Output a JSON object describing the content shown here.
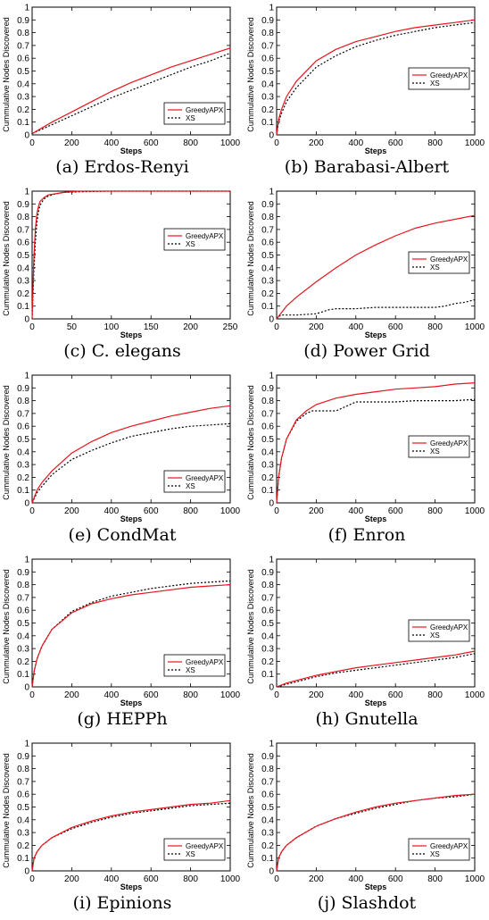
{
  "colors": {
    "greedy": "#e8141c",
    "xs": "#000000"
  },
  "legend_labels": [
    "GreedyAPX",
    "XS"
  ],
  "chart_data": [
    {
      "type": "line",
      "caption": "(a) Erdos-Renyi",
      "xlabel": "Steps",
      "ylabel": "Cummulative Nodes Discovered",
      "xlim": [
        0,
        1000
      ],
      "ylim": [
        0,
        1
      ],
      "xticks": [
        0,
        200,
        400,
        600,
        800,
        1000
      ],
      "legend_position": "bottom-right",
      "series": [
        {
          "name": "GreedyAPX",
          "style": "solid",
          "x": [
            0,
            100,
            200,
            300,
            400,
            500,
            600,
            700,
            800,
            900,
            1000
          ],
          "y": [
            0.01,
            0.1,
            0.18,
            0.26,
            0.34,
            0.41,
            0.47,
            0.53,
            0.58,
            0.63,
            0.68
          ]
        },
        {
          "name": "XS",
          "style": "dotted",
          "x": [
            0,
            100,
            200,
            300,
            400,
            500,
            600,
            700,
            800,
            900,
            1000
          ],
          "y": [
            0.01,
            0.08,
            0.15,
            0.22,
            0.29,
            0.35,
            0.41,
            0.47,
            0.53,
            0.58,
            0.64
          ]
        }
      ]
    },
    {
      "type": "line",
      "caption": "(b) Barabasi-Albert",
      "xlabel": "Steps",
      "ylabel": "Cummulative Nodes Discovered",
      "xlim": [
        0,
        1000
      ],
      "ylim": [
        0,
        1
      ],
      "xticks": [
        0,
        200,
        400,
        600,
        800,
        1000
      ],
      "legend_position": "middle-right",
      "series": [
        {
          "name": "GreedyAPX",
          "style": "solid",
          "x": [
            0,
            10,
            25,
            50,
            100,
            200,
            300,
            400,
            500,
            600,
            700,
            800,
            900,
            1000
          ],
          "y": [
            0,
            0.12,
            0.2,
            0.3,
            0.42,
            0.58,
            0.67,
            0.73,
            0.77,
            0.81,
            0.84,
            0.86,
            0.88,
            0.9
          ]
        },
        {
          "name": "XS",
          "style": "dotted",
          "x": [
            0,
            10,
            25,
            50,
            100,
            200,
            300,
            400,
            500,
            600,
            700,
            800,
            900,
            1000
          ],
          "y": [
            0,
            0.1,
            0.17,
            0.26,
            0.37,
            0.53,
            0.62,
            0.69,
            0.74,
            0.78,
            0.81,
            0.84,
            0.86,
            0.88
          ]
        }
      ]
    },
    {
      "type": "line",
      "caption": "(c) C. elegans",
      "xlabel": "Steps",
      "ylabel": "Cummulative Nodes Discovered",
      "xlim": [
        0,
        250
      ],
      "ylim": [
        0,
        1
      ],
      "xticks": [
        0,
        50,
        100,
        150,
        200,
        250
      ],
      "legend_position": "top-right",
      "series": [
        {
          "name": "GreedyAPX",
          "style": "solid",
          "x": [
            0,
            2,
            4,
            6,
            8,
            10,
            15,
            20,
            30,
            40,
            60,
            100,
            150,
            200,
            250
          ],
          "y": [
            0,
            0.45,
            0.7,
            0.82,
            0.88,
            0.92,
            0.95,
            0.97,
            0.98,
            0.99,
            1,
            1,
            1,
            1,
            1
          ]
        },
        {
          "name": "XS",
          "style": "dotted",
          "x": [
            0,
            2,
            4,
            6,
            8,
            10,
            15,
            20,
            30,
            40,
            60,
            100,
            150,
            200,
            250
          ],
          "y": [
            0,
            0.35,
            0.6,
            0.75,
            0.84,
            0.89,
            0.94,
            0.96,
            0.98,
            0.99,
            0.995,
            1,
            1,
            1,
            1
          ]
        }
      ]
    },
    {
      "type": "line",
      "caption": "(d) Power Grid",
      "xlabel": "Steps",
      "ylabel": "Cummulative Nodes Discovered",
      "xlim": [
        0,
        1000
      ],
      "ylim": [
        0,
        1
      ],
      "xticks": [
        0,
        200,
        400,
        600,
        800,
        1000
      ],
      "legend_position": "middle-right",
      "series": [
        {
          "name": "GreedyAPX",
          "style": "solid",
          "x": [
            0,
            50,
            100,
            200,
            300,
            400,
            500,
            600,
            700,
            800,
            900,
            1000
          ],
          "y": [
            0,
            0.1,
            0.17,
            0.29,
            0.4,
            0.5,
            0.58,
            0.65,
            0.71,
            0.75,
            0.78,
            0.81
          ]
        },
        {
          "name": "XS",
          "style": "dotted",
          "x": [
            0,
            20,
            100,
            200,
            260,
            300,
            400,
            500,
            600,
            700,
            800,
            850,
            900,
            950,
            1000
          ],
          "y": [
            0,
            0.03,
            0.03,
            0.04,
            0.07,
            0.08,
            0.08,
            0.09,
            0.09,
            0.09,
            0.09,
            0.1,
            0.12,
            0.13,
            0.15
          ]
        }
      ]
    },
    {
      "type": "line",
      "caption": "(e) CondMat",
      "xlabel": "Steps",
      "ylabel": "Cummulative Nodes Discovered",
      "xlim": [
        0,
        1000
      ],
      "ylim": [
        0,
        1
      ],
      "xticks": [
        0,
        200,
        400,
        600,
        800,
        1000
      ],
      "legend_position": "bottom-right",
      "series": [
        {
          "name": "GreedyAPX",
          "style": "solid",
          "x": [
            0,
            25,
            50,
            100,
            200,
            300,
            400,
            500,
            600,
            700,
            800,
            900,
            1000
          ],
          "y": [
            0,
            0.1,
            0.16,
            0.25,
            0.39,
            0.48,
            0.55,
            0.6,
            0.64,
            0.68,
            0.71,
            0.74,
            0.76
          ]
        },
        {
          "name": "XS",
          "style": "dotted",
          "x": [
            0,
            25,
            50,
            100,
            200,
            300,
            400,
            500,
            600,
            700,
            800,
            900,
            1000
          ],
          "y": [
            0,
            0.08,
            0.13,
            0.22,
            0.34,
            0.41,
            0.47,
            0.52,
            0.55,
            0.58,
            0.6,
            0.61,
            0.62
          ]
        }
      ]
    },
    {
      "type": "line",
      "caption": "(f) Enron",
      "xlabel": "Steps",
      "ylabel": "Cummulative Nodes Discovered",
      "xlim": [
        0,
        1000
      ],
      "ylim": [
        0,
        1
      ],
      "xticks": [
        0,
        200,
        400,
        600,
        800,
        1000
      ],
      "legend_position": "middle-right",
      "series": [
        {
          "name": "GreedyAPX",
          "style": "solid",
          "x": [
            0,
            10,
            25,
            50,
            100,
            150,
            200,
            300,
            400,
            500,
            600,
            700,
            800,
            900,
            1000
          ],
          "y": [
            0,
            0.2,
            0.35,
            0.5,
            0.65,
            0.72,
            0.77,
            0.82,
            0.85,
            0.87,
            0.89,
            0.9,
            0.91,
            0.93,
            0.94
          ]
        },
        {
          "name": "XS",
          "style": "dotted",
          "x": [
            0,
            10,
            25,
            50,
            100,
            150,
            180,
            200,
            250,
            300,
            400,
            500,
            600,
            700,
            800,
            900,
            1000
          ],
          "y": [
            0,
            0.2,
            0.35,
            0.5,
            0.64,
            0.7,
            0.72,
            0.72,
            0.72,
            0.72,
            0.79,
            0.79,
            0.79,
            0.8,
            0.8,
            0.8,
            0.81
          ]
        }
      ]
    },
    {
      "type": "line",
      "caption": "(g) HEPPh",
      "xlabel": "Steps",
      "ylabel": "Cummulative Nodes Discovered",
      "xlim": [
        0,
        1000
      ],
      "ylim": [
        0,
        1
      ],
      "xticks": [
        0,
        200,
        400,
        600,
        800,
        1000
      ],
      "legend_position": "bottom-right",
      "series": [
        {
          "name": "GreedyAPX",
          "style": "solid",
          "x": [
            0,
            10,
            25,
            50,
            100,
            200,
            300,
            400,
            500,
            600,
            700,
            800,
            900,
            1000
          ],
          "y": [
            0,
            0.12,
            0.22,
            0.32,
            0.45,
            0.58,
            0.65,
            0.69,
            0.72,
            0.74,
            0.76,
            0.78,
            0.79,
            0.8
          ]
        },
        {
          "name": "XS",
          "style": "dotted",
          "x": [
            0,
            10,
            25,
            50,
            100,
            200,
            300,
            400,
            500,
            600,
            700,
            800,
            900,
            1000
          ],
          "y": [
            0,
            0.12,
            0.22,
            0.32,
            0.45,
            0.59,
            0.66,
            0.71,
            0.74,
            0.77,
            0.79,
            0.81,
            0.82,
            0.83
          ]
        }
      ]
    },
    {
      "type": "line",
      "caption": "(h) Gnutella",
      "xlabel": "Steps",
      "ylabel": "Cummulative Nodes Discovered",
      "xlim": [
        0,
        1000
      ],
      "ylim": [
        0,
        1
      ],
      "xticks": [
        0,
        200,
        400,
        600,
        800,
        1000
      ],
      "legend_position": "middle-right",
      "series": [
        {
          "name": "GreedyAPX",
          "style": "solid",
          "x": [
            0,
            50,
            100,
            200,
            300,
            400,
            500,
            600,
            700,
            800,
            900,
            1000
          ],
          "y": [
            0,
            0.03,
            0.05,
            0.09,
            0.12,
            0.15,
            0.17,
            0.19,
            0.21,
            0.23,
            0.25,
            0.28
          ]
        },
        {
          "name": "XS",
          "style": "dotted",
          "x": [
            0,
            50,
            100,
            200,
            300,
            400,
            500,
            600,
            700,
            800,
            900,
            1000
          ],
          "y": [
            0,
            0.02,
            0.04,
            0.08,
            0.11,
            0.13,
            0.15,
            0.17,
            0.19,
            0.21,
            0.23,
            0.26
          ]
        }
      ]
    },
    {
      "type": "line",
      "caption": "(i) Epinions",
      "xlabel": "Steps",
      "ylabel": "Cummulative Nodes Discovered",
      "xlim": [
        0,
        1000
      ],
      "ylim": [
        0,
        1
      ],
      "xticks": [
        0,
        200,
        400,
        600,
        800,
        1000
      ],
      "legend_position": "bottom-right",
      "series": [
        {
          "name": "GreedyAPX",
          "style": "solid",
          "x": [
            0,
            10,
            25,
            50,
            100,
            200,
            300,
            400,
            500,
            600,
            700,
            800,
            900,
            1000
          ],
          "y": [
            0,
            0.1,
            0.15,
            0.2,
            0.26,
            0.34,
            0.39,
            0.43,
            0.46,
            0.48,
            0.5,
            0.52,
            0.53,
            0.55
          ]
        },
        {
          "name": "XS",
          "style": "dotted",
          "x": [
            0,
            10,
            25,
            50,
            100,
            200,
            300,
            400,
            500,
            600,
            700,
            800,
            900,
            1000
          ],
          "y": [
            0,
            0.1,
            0.15,
            0.2,
            0.26,
            0.33,
            0.38,
            0.42,
            0.45,
            0.47,
            0.49,
            0.51,
            0.52,
            0.53
          ]
        }
      ]
    },
    {
      "type": "line",
      "caption": "(j) Slashdot",
      "xlabel": "Steps",
      "ylabel": "Cummulative Nodes Discovered",
      "xlim": [
        0,
        1000
      ],
      "ylim": [
        0,
        1
      ],
      "xticks": [
        0,
        200,
        400,
        600,
        800,
        1000
      ],
      "legend_position": "bottom-right",
      "series": [
        {
          "name": "GreedyAPX",
          "style": "solid",
          "x": [
            0,
            10,
            25,
            50,
            100,
            200,
            300,
            400,
            500,
            600,
            700,
            800,
            900,
            1000
          ],
          "y": [
            0,
            0.1,
            0.15,
            0.2,
            0.26,
            0.35,
            0.41,
            0.46,
            0.5,
            0.53,
            0.55,
            0.57,
            0.59,
            0.6
          ]
        },
        {
          "name": "XS",
          "style": "dotted",
          "x": [
            0,
            10,
            25,
            50,
            100,
            200,
            300,
            400,
            500,
            600,
            700,
            800,
            900,
            1000
          ],
          "y": [
            0,
            0.1,
            0.15,
            0.2,
            0.26,
            0.35,
            0.41,
            0.45,
            0.49,
            0.52,
            0.55,
            0.57,
            0.58,
            0.6
          ]
        }
      ]
    }
  ]
}
